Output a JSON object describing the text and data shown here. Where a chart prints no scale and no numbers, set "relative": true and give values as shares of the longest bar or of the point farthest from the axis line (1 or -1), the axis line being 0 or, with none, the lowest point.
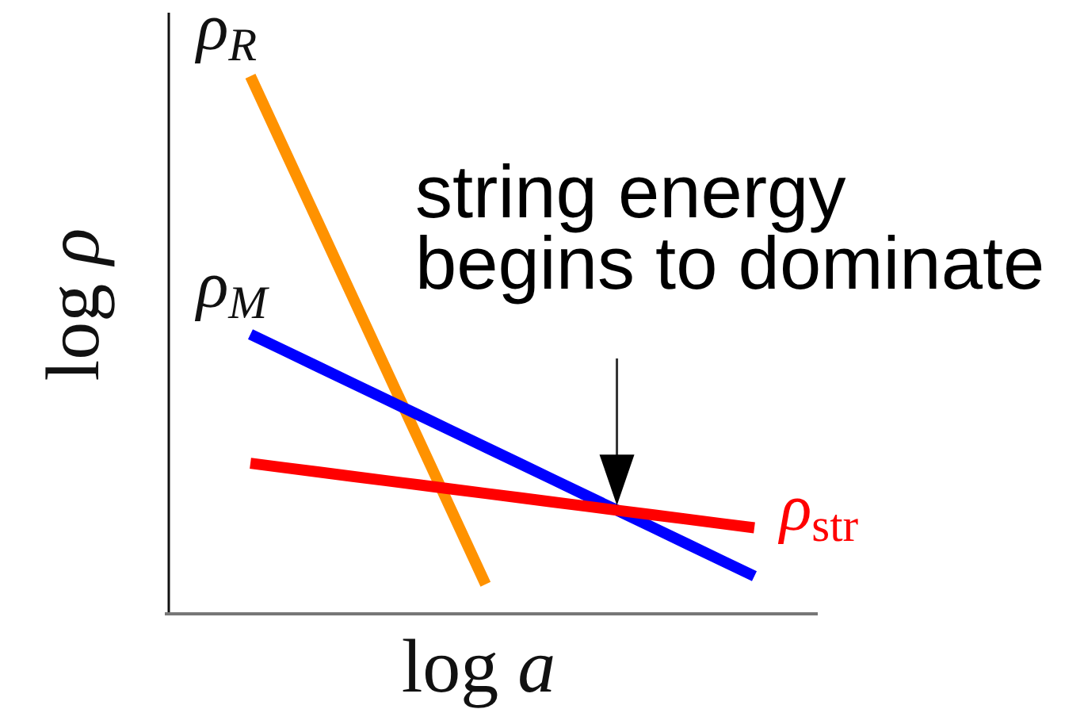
{
  "chart_data": {
    "type": "line",
    "relative": true,
    "xlabel": "log a",
    "ylabel": "log ρ",
    "categories": [
      null,
      null,
      null,
      null,
      null,
      null,
      null,
      null,
      null,
      null,
      null,
      null,
      null,
      null,
      null,
      null
    ],
    "series": [
      {
        "name": "ρ$_{R}$",
        "color": "#ff9200",
        "values": [
          1,
          0.865,
          0.73,
          0.595,
          0.46,
          0.325,
          0.19,
          0.055,
          null,
          null,
          null,
          null,
          null,
          null,
          null,
          null
        ]
      },
      {
        "name": "ρ$_{M}$",
        "color": "#0000ff",
        "values": [
          0.52,
          0.49,
          0.46,
          0.43,
          0.4,
          0.37,
          0.34,
          0.31,
          0.28,
          0.25,
          0.22,
          0.19,
          0.16,
          0.13,
          0.1,
          0.07
        ]
      },
      {
        "name": "ρ$_{str}$",
        "color": "#ff0000",
        "values": [
          0.28,
          0.272,
          0.264,
          0.256,
          0.248,
          0.24,
          0.232,
          0.224,
          0.216,
          0.208,
          0.2,
          0.192,
          0.184,
          0.176,
          0.168,
          0.16
        ]
      }
    ],
    "annotations": [
      {
        "text": "string energy\nbegins to dominate",
        "y": 0.19
      }
    ]
  }
}
